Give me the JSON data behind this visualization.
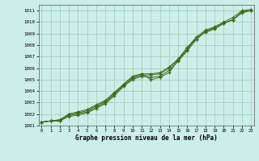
{
  "x": [
    0,
    1,
    2,
    3,
    4,
    5,
    6,
    7,
    8,
    9,
    10,
    11,
    12,
    13,
    14,
    15,
    16,
    17,
    18,
    19,
    20,
    21,
    22,
    23
  ],
  "line1": [
    1001.3,
    1001.4,
    1001.4,
    1001.8,
    1001.9,
    1002.1,
    1002.5,
    1002.9,
    1003.6,
    1004.4,
    1005.0,
    1005.3,
    1005.2,
    1005.3,
    1005.8,
    1006.6,
    1007.5,
    1008.5,
    1009.2,
    1009.5,
    1009.9,
    1010.2,
    1010.9,
    1011.0
  ],
  "line2": [
    1001.3,
    1001.4,
    1001.4,
    1001.9,
    1002.0,
    1002.2,
    1002.6,
    1003.0,
    1003.7,
    1004.5,
    1005.1,
    1005.4,
    1005.4,
    1005.5,
    1006.0,
    1006.7,
    1007.8,
    1008.5,
    1009.2,
    1009.5,
    1009.9,
    1010.2,
    1010.9,
    1011.0
  ],
  "line3": [
    1001.3,
    1001.4,
    1001.5,
    1002.0,
    1002.1,
    1002.3,
    1002.7,
    1003.1,
    1003.8,
    1004.6,
    1005.2,
    1005.5,
    1005.5,
    1005.6,
    1006.1,
    1006.8,
    1007.8,
    1008.7,
    1009.3,
    1009.6,
    1010.0,
    1010.4,
    1011.0,
    1011.1
  ],
  "line4": [
    1001.3,
    1001.4,
    1001.5,
    1002.0,
    1002.2,
    1002.4,
    1002.8,
    1003.2,
    1003.9,
    1004.6,
    1005.3,
    1005.5,
    1005.0,
    1005.2,
    1005.6,
    1006.7,
    1007.6,
    1008.7,
    1009.1,
    1009.4,
    1009.9,
    1010.2,
    1010.8,
    1011.0
  ],
  "line_color": "#3a6b1a",
  "bg_color": "#cceee8",
  "grid_color": "#99ccbb",
  "xlabel": "Graphe pression niveau de la mer (hPa)",
  "ylim": [
    1001.0,
    1011.5
  ],
  "yticks": [
    1001,
    1002,
    1003,
    1004,
    1005,
    1006,
    1007,
    1008,
    1009,
    1010,
    1011
  ],
  "xticks": [
    0,
    1,
    2,
    3,
    4,
    5,
    6,
    7,
    8,
    9,
    10,
    11,
    12,
    13,
    14,
    15,
    16,
    17,
    18,
    19,
    20,
    21,
    22,
    23
  ]
}
